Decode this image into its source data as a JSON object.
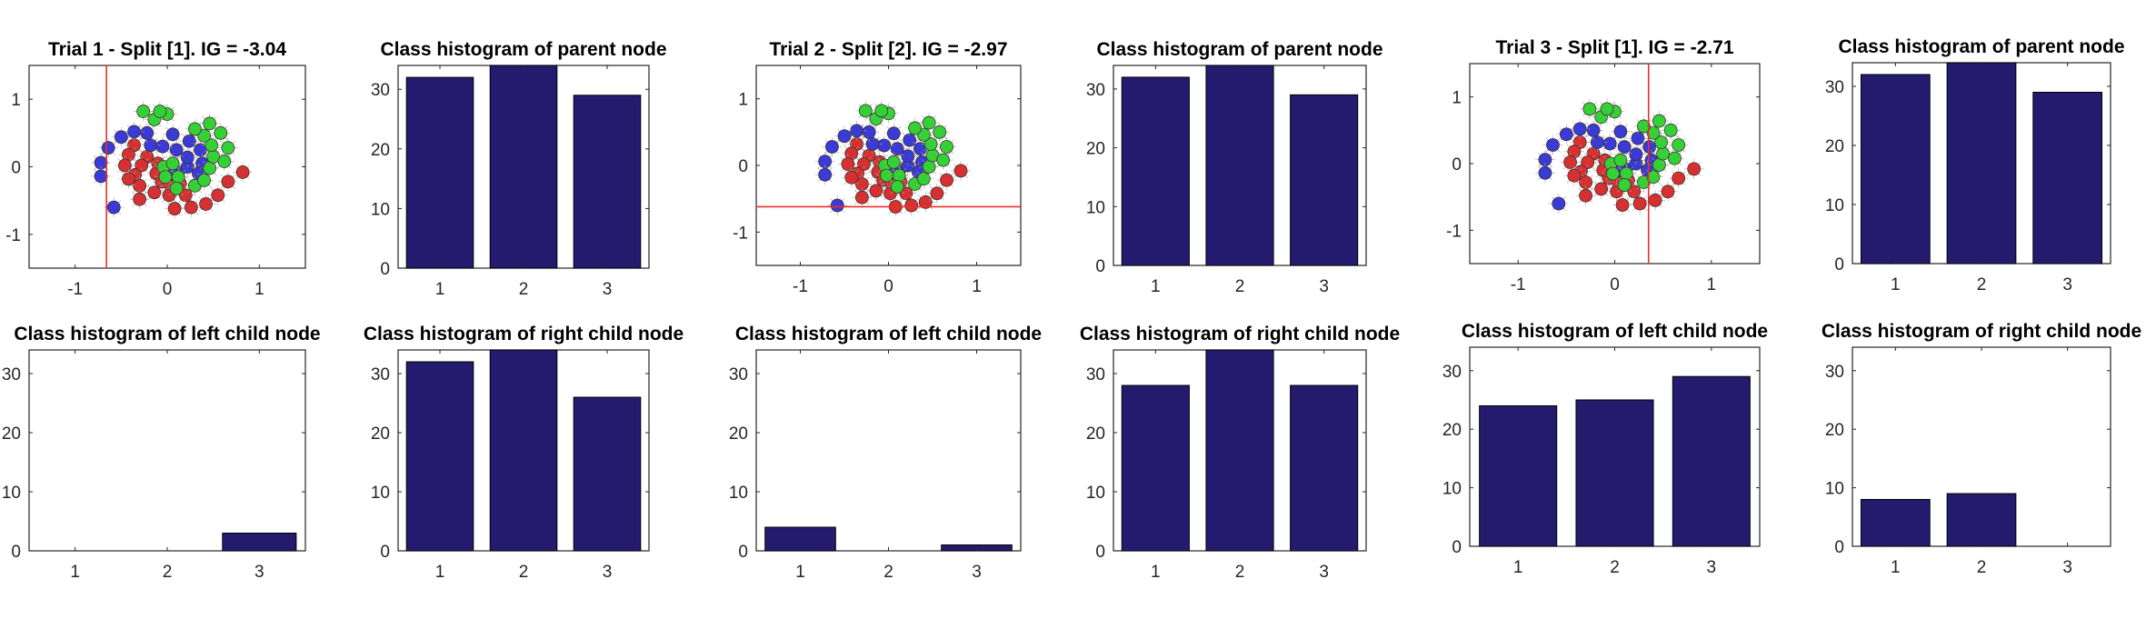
{
  "colors": {
    "bar": "#251b6e",
    "split_line": "#e8302a",
    "class_1": "#d83030",
    "class_2": "#3a3ad6",
    "class_3": "#34d134",
    "axis": "#262626"
  },
  "chart_data": [
    {
      "type": "scatter",
      "title": "Trial 1 - Split [1]. IG = -3.04",
      "xlim": [
        -1.5,
        1.5
      ],
      "ylim": [
        -1.5,
        1.5
      ],
      "xticks": [
        -1,
        0,
        1
      ],
      "yticks": [
        -1,
        0,
        1
      ],
      "split": {
        "axis": "x",
        "value": -0.66
      },
      "series": [
        {
          "class": 1,
          "points": [
            [
              -0.1,
              0.05
            ],
            [
              -0.12,
              -0.1
            ],
            [
              -0.06,
              -0.22
            ],
            [
              0.04,
              -0.28
            ],
            [
              0.14,
              -0.25
            ],
            [
              -0.22,
              0.15
            ],
            [
              -0.28,
              0.02
            ],
            [
              -0.35,
              -0.12
            ],
            [
              -0.3,
              -0.28
            ],
            [
              -0.14,
              -0.38
            ],
            [
              0.02,
              -0.42
            ],
            [
              0.2,
              -0.42
            ],
            [
              -0.36,
              0.32
            ],
            [
              -0.42,
              0.18
            ],
            [
              -0.46,
              0.02
            ],
            [
              -0.42,
              -0.18
            ],
            [
              -0.3,
              -0.48
            ],
            [
              0.08,
              -0.62
            ],
            [
              0.26,
              -0.6
            ],
            [
              0.42,
              -0.55
            ],
            [
              0.55,
              -0.42
            ],
            [
              0.66,
              -0.22
            ],
            [
              0.82,
              -0.08
            ]
          ]
        },
        {
          "class": 2,
          "points": [
            [
              0.02,
              -0.12
            ],
            [
              0.12,
              -0.08
            ],
            [
              0.22,
              0.0
            ],
            [
              0.22,
              0.14
            ],
            [
              0.1,
              0.25
            ],
            [
              -0.05,
              0.3
            ],
            [
              -0.18,
              0.32
            ],
            [
              0.06,
              0.48
            ],
            [
              0.24,
              0.38
            ],
            [
              0.36,
              0.25
            ],
            [
              0.38,
              0.05
            ],
            [
              0.34,
              -0.1
            ],
            [
              -0.22,
              0.5
            ],
            [
              -0.36,
              0.52
            ],
            [
              -0.5,
              0.44
            ],
            [
              -0.64,
              0.28
            ],
            [
              -0.72,
              0.06
            ],
            [
              -0.72,
              -0.14
            ],
            [
              -0.58,
              -0.6
            ],
            [
              0.06,
              -0.1
            ]
          ]
        },
        {
          "class": 3,
          "points": [
            [
              -0.04,
              0.0
            ],
            [
              -0.02,
              -0.15
            ],
            [
              0.12,
              -0.15
            ],
            [
              0.06,
              0.05
            ],
            [
              0.3,
              -0.28
            ],
            [
              0.4,
              -0.2
            ],
            [
              0.46,
              -0.02
            ],
            [
              0.5,
              0.15
            ],
            [
              0.48,
              0.32
            ],
            [
              0.4,
              0.46
            ],
            [
              0.3,
              0.56
            ],
            [
              -0.14,
              0.7
            ],
            [
              0.0,
              0.78
            ],
            [
              0.46,
              0.64
            ],
            [
              0.58,
              0.5
            ],
            [
              0.66,
              0.28
            ],
            [
              0.62,
              0.08
            ],
            [
              -0.08,
              0.82
            ],
            [
              -0.26,
              0.82
            ],
            [
              0.1,
              -0.32
            ]
          ]
        }
      ]
    },
    {
      "type": "bar",
      "title": "Class histogram of parent node",
      "categories": [
        "1",
        "2",
        "3"
      ],
      "values": [
        32,
        34,
        29
      ],
      "ylim": [
        0,
        34
      ],
      "yticks": [
        0,
        10,
        20,
        30
      ]
    },
    {
      "type": "scatter",
      "title": "Trial 2 - Split [2]. IG = -2.97",
      "xlim": [
        -1.5,
        1.5
      ],
      "ylim": [
        -1.5,
        1.5
      ],
      "xticks": [
        -1,
        0,
        1
      ],
      "yticks": [
        -1,
        0,
        1
      ],
      "split": {
        "axis": "y",
        "value": -0.62
      },
      "series": [
        {
          "class": 1,
          "points": [
            [
              -0.1,
              0.05
            ],
            [
              -0.12,
              -0.1
            ],
            [
              -0.06,
              -0.22
            ],
            [
              0.04,
              -0.28
            ],
            [
              0.14,
              -0.25
            ],
            [
              -0.22,
              0.15
            ],
            [
              -0.28,
              0.02
            ],
            [
              -0.35,
              -0.12
            ],
            [
              -0.3,
              -0.28
            ],
            [
              -0.14,
              -0.38
            ],
            [
              0.02,
              -0.42
            ],
            [
              0.2,
              -0.42
            ],
            [
              -0.36,
              0.32
            ],
            [
              -0.42,
              0.18
            ],
            [
              -0.46,
              0.02
            ],
            [
              -0.42,
              -0.18
            ],
            [
              -0.3,
              -0.48
            ],
            [
              0.08,
              -0.62
            ],
            [
              0.26,
              -0.6
            ],
            [
              0.42,
              -0.55
            ],
            [
              0.55,
              -0.42
            ],
            [
              0.66,
              -0.22
            ],
            [
              0.82,
              -0.08
            ]
          ]
        },
        {
          "class": 2,
          "points": [
            [
              0.02,
              -0.12
            ],
            [
              0.12,
              -0.08
            ],
            [
              0.22,
              0.0
            ],
            [
              0.22,
              0.14
            ],
            [
              0.1,
              0.25
            ],
            [
              -0.05,
              0.3
            ],
            [
              -0.18,
              0.32
            ],
            [
              0.06,
              0.48
            ],
            [
              0.24,
              0.38
            ],
            [
              0.36,
              0.25
            ],
            [
              0.38,
              0.05
            ],
            [
              0.34,
              -0.1
            ],
            [
              -0.22,
              0.5
            ],
            [
              -0.36,
              0.52
            ],
            [
              -0.5,
              0.44
            ],
            [
              -0.64,
              0.28
            ],
            [
              -0.72,
              0.06
            ],
            [
              -0.72,
              -0.14
            ],
            [
              -0.58,
              -0.6
            ],
            [
              0.06,
              -0.1
            ]
          ]
        },
        {
          "class": 3,
          "points": [
            [
              -0.04,
              0.0
            ],
            [
              -0.02,
              -0.15
            ],
            [
              0.12,
              -0.15
            ],
            [
              0.06,
              0.05
            ],
            [
              0.3,
              -0.28
            ],
            [
              0.4,
              -0.2
            ],
            [
              0.46,
              -0.02
            ],
            [
              0.5,
              0.15
            ],
            [
              0.48,
              0.32
            ],
            [
              0.4,
              0.46
            ],
            [
              0.3,
              0.56
            ],
            [
              -0.14,
              0.7
            ],
            [
              0.0,
              0.78
            ],
            [
              0.46,
              0.64
            ],
            [
              0.58,
              0.5
            ],
            [
              0.66,
              0.28
            ],
            [
              0.62,
              0.08
            ],
            [
              -0.08,
              0.82
            ],
            [
              -0.26,
              0.82
            ],
            [
              0.1,
              -0.32
            ]
          ]
        }
      ]
    },
    {
      "type": "bar",
      "title": "Class histogram of parent node",
      "categories": [
        "1",
        "2",
        "3"
      ],
      "values": [
        32,
        34,
        29
      ],
      "ylim": [
        0,
        34
      ],
      "yticks": [
        0,
        10,
        20,
        30
      ]
    },
    {
      "type": "scatter",
      "title": "Trial 3 - Split [1]. IG = -2.71",
      "xlim": [
        -1.5,
        1.5
      ],
      "ylim": [
        -1.5,
        1.5
      ],
      "xticks": [
        -1,
        0,
        1
      ],
      "yticks": [
        -1,
        0,
        1
      ],
      "split": {
        "axis": "x",
        "value": 0.35
      },
      "series": [
        {
          "class": 1,
          "points": [
            [
              -0.1,
              0.05
            ],
            [
              -0.12,
              -0.1
            ],
            [
              -0.06,
              -0.22
            ],
            [
              0.04,
              -0.28
            ],
            [
              0.14,
              -0.25
            ],
            [
              -0.22,
              0.15
            ],
            [
              -0.28,
              0.02
            ],
            [
              -0.35,
              -0.12
            ],
            [
              -0.3,
              -0.28
            ],
            [
              -0.14,
              -0.38
            ],
            [
              0.02,
              -0.42
            ],
            [
              0.2,
              -0.42
            ],
            [
              -0.36,
              0.32
            ],
            [
              -0.42,
              0.18
            ],
            [
              -0.46,
              0.02
            ],
            [
              -0.42,
              -0.18
            ],
            [
              -0.3,
              -0.48
            ],
            [
              0.08,
              -0.62
            ],
            [
              0.26,
              -0.6
            ],
            [
              0.42,
              -0.55
            ],
            [
              0.55,
              -0.42
            ],
            [
              0.66,
              -0.22
            ],
            [
              0.82,
              -0.08
            ]
          ]
        },
        {
          "class": 2,
          "points": [
            [
              0.02,
              -0.12
            ],
            [
              0.12,
              -0.08
            ],
            [
              0.22,
              0.0
            ],
            [
              0.22,
              0.14
            ],
            [
              0.1,
              0.25
            ],
            [
              -0.05,
              0.3
            ],
            [
              -0.18,
              0.32
            ],
            [
              0.06,
              0.48
            ],
            [
              0.24,
              0.38
            ],
            [
              0.36,
              0.25
            ],
            [
              0.38,
              0.05
            ],
            [
              0.34,
              -0.1
            ],
            [
              -0.22,
              0.5
            ],
            [
              -0.36,
              0.52
            ],
            [
              -0.5,
              0.44
            ],
            [
              -0.64,
              0.28
            ],
            [
              -0.72,
              0.06
            ],
            [
              -0.72,
              -0.14
            ],
            [
              -0.58,
              -0.6
            ],
            [
              0.06,
              -0.1
            ]
          ]
        },
        {
          "class": 3,
          "points": [
            [
              -0.04,
              0.0
            ],
            [
              -0.02,
              -0.15
            ],
            [
              0.12,
              -0.15
            ],
            [
              0.06,
              0.05
            ],
            [
              0.3,
              -0.28
            ],
            [
              0.4,
              -0.2
            ],
            [
              0.46,
              -0.02
            ],
            [
              0.5,
              0.15
            ],
            [
              0.48,
              0.32
            ],
            [
              0.4,
              0.46
            ],
            [
              0.3,
              0.56
            ],
            [
              -0.14,
              0.7
            ],
            [
              0.0,
              0.78
            ],
            [
              0.46,
              0.64
            ],
            [
              0.58,
              0.5
            ],
            [
              0.66,
              0.28
            ],
            [
              0.62,
              0.08
            ],
            [
              -0.08,
              0.82
            ],
            [
              -0.26,
              0.82
            ],
            [
              0.1,
              -0.32
            ]
          ]
        }
      ]
    },
    {
      "type": "bar",
      "title": "Class histogram of parent node",
      "categories": [
        "1",
        "2",
        "3"
      ],
      "values": [
        32,
        34,
        29
      ],
      "ylim": [
        0,
        34
      ],
      "yticks": [
        0,
        10,
        20,
        30
      ]
    },
    {
      "type": "bar",
      "title": "Class histogram of left child node",
      "categories": [
        "1",
        "2",
        "3"
      ],
      "values": [
        0,
        0,
        3
      ],
      "ylim": [
        0,
        34
      ],
      "yticks": [
        0,
        10,
        20,
        30
      ]
    },
    {
      "type": "bar",
      "title": "Class histogram of right child node",
      "categories": [
        "1",
        "2",
        "3"
      ],
      "values": [
        32,
        34,
        26
      ],
      "ylim": [
        0,
        34
      ],
      "yticks": [
        0,
        10,
        20,
        30
      ]
    },
    {
      "type": "bar",
      "title": "Class histogram of left child node",
      "categories": [
        "1",
        "2",
        "3"
      ],
      "values": [
        4,
        0,
        1
      ],
      "ylim": [
        0,
        34
      ],
      "yticks": [
        0,
        10,
        20,
        30
      ]
    },
    {
      "type": "bar",
      "title": "Class histogram of right child node",
      "categories": [
        "1",
        "2",
        "3"
      ],
      "values": [
        28,
        34,
        28
      ],
      "ylim": [
        0,
        34
      ],
      "yticks": [
        0,
        10,
        20,
        30
      ]
    },
    {
      "type": "bar",
      "title": "Class histogram of left child node",
      "categories": [
        "1",
        "2",
        "3"
      ],
      "values": [
        24,
        25,
        29
      ],
      "ylim": [
        0,
        34
      ],
      "yticks": [
        0,
        10,
        20,
        30
      ]
    },
    {
      "type": "bar",
      "title": "Class histogram of right child node",
      "categories": [
        "1",
        "2",
        "3"
      ],
      "values": [
        8,
        9,
        0
      ],
      "ylim": [
        0,
        34
      ],
      "yticks": [
        0,
        10,
        20,
        30
      ]
    }
  ]
}
